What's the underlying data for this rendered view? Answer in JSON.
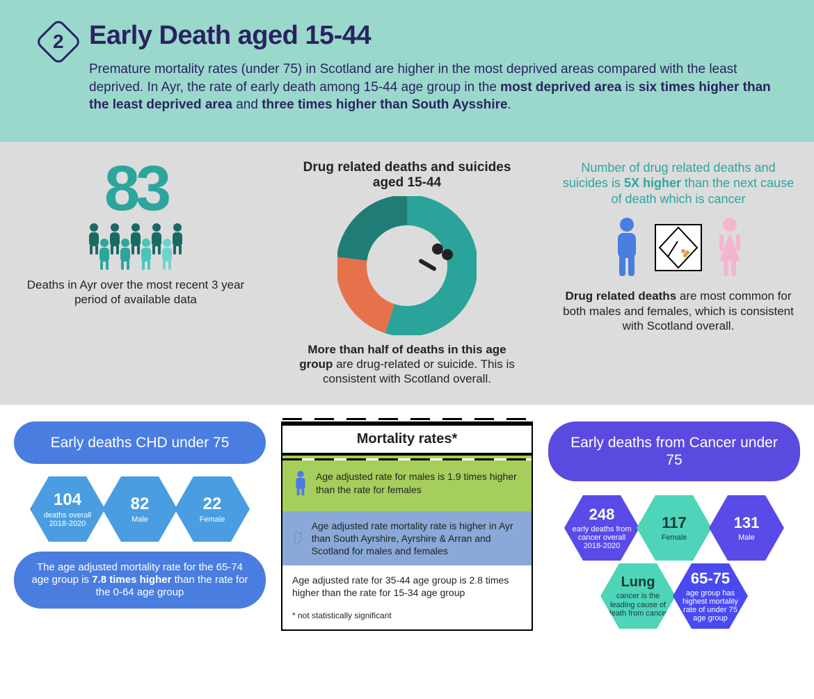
{
  "header": {
    "badge": "2",
    "title": "Early Death aged 15-44",
    "subtitle_pre": "Premature mortality rates (under 75) in Scotland are higher in the most deprived areas compared with the least deprived. In Ayr, the rate of early death among 15-44 age group in the ",
    "bold1": "most deprived area",
    "mid1": " is ",
    "bold2": "six times higher than the least deprived area",
    "mid2": " and ",
    "bold3": "three times higher than South Aysshire",
    "end": "."
  },
  "stat83": {
    "number": "83",
    "caption": "Deaths in Ayr over the most recent 3 year period of available data",
    "people_colors": [
      "#1a6a64",
      "#1a6a64",
      "#1a6a64",
      "#1a6a64",
      "#1a6a64",
      "#2ca59d",
      "#2ca59d",
      "#4ac5bd",
      "#6dd5cd"
    ]
  },
  "donut": {
    "title": "Drug related deaths and suicides aged 15-44",
    "slices": [
      {
        "color": "#2aa39a",
        "pct": 55
      },
      {
        "color": "#e5724b",
        "pct": 22
      },
      {
        "color": "#1f7d76",
        "pct": 23
      }
    ],
    "caption_pre": "More than half of deaths in this age group",
    "caption_post": " are drug-related or suicide. This is consistent with Scotland overall."
  },
  "drug5x": {
    "line_pre": "Number of drug related deaths and suicides is ",
    "bold": "5X higher",
    "line_post": " than the next cause of death which is cancer",
    "male_color": "#4a7de0",
    "female_color": "#f2b7ce",
    "caption_bold": "Drug related deaths",
    "caption_post": " are most common for both males and females, which is consistent with Scotland overall."
  },
  "chd": {
    "title": "Early deaths CHD under 75",
    "hex": [
      {
        "num": "104",
        "lbl": "deaths overall 2018-2020",
        "color": "#4a9de0"
      },
      {
        "num": "82",
        "lbl": "Male",
        "color": "#4a9de0"
      },
      {
        "num": "22",
        "lbl": "Female",
        "color": "#4a9de0"
      }
    ],
    "bottom_pre": "The age adjusted mortality rate for the 65-74 age group is ",
    "bottom_bold": "7.8 times higher",
    "bottom_post": " than the rate for the 0-64 age group"
  },
  "mortality": {
    "title": "Mortality rates*",
    "row1": "Age adjusted rate for males is 1.9 times higher than the rate for females",
    "row2": "Age adjusted rate mortality rate is higher in Ayr than South Ayrshire, Ayrshire & Arran and Scotland for males and females",
    "row3": "Age adjusted rate for 35-44 age group is 2.8 times higher than the rate for 15-34 age group",
    "note": "* not statistically significant"
  },
  "cancer": {
    "title": "Early deaths from Cancer under 75",
    "hex": [
      {
        "num": "248",
        "lbl": "early deaths from cancer overall 2018-2020",
        "bg": "indigo"
      },
      {
        "num": "117",
        "lbl": "Female",
        "bg": "teal"
      },
      {
        "num": "131",
        "lbl": "Male",
        "bg": "indigo"
      },
      {
        "num": "Lung",
        "lbl": "cancer is the leading cause of death from cancer",
        "bg": "teal"
      },
      {
        "num": "65-75",
        "lbl": "age group has highest mortality rate of under 75 age group",
        "bg": "indigo2"
      }
    ]
  }
}
